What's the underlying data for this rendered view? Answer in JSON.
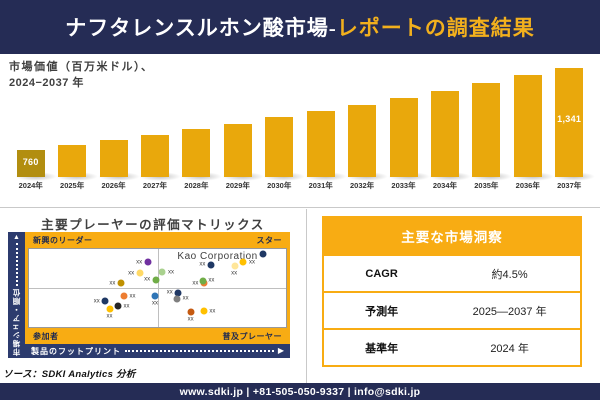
{
  "header": {
    "title_main": "ナフタレンスルホン酸市場-",
    "title_accent": "レポートの調査結果",
    "bg_color": "#252C55",
    "accent_color": "#F2B01D"
  },
  "chart_data": [
    {
      "type": "bar",
      "title": "市場価値（百万米ドル）、2024−2037 年",
      "title_line1": "市場価値（百万米ドル）、",
      "title_line2": "2024−2037 年",
      "categories": [
        "2024年",
        "2025年",
        "2026年",
        "2027年",
        "2028年",
        "2029年",
        "2030年",
        "2031年",
        "2032年",
        "2033年",
        "2034年",
        "2035年",
        "2036年",
        "2037年"
      ],
      "values": [
        760,
        794,
        830,
        867,
        906,
        947,
        990,
        1034,
        1081,
        1129,
        1180,
        1233,
        1289,
        1341
      ],
      "value_labels": [
        "760",
        "",
        "",
        "",
        "",
        "",
        "",
        "",
        "",
        "",
        "",
        "",
        "",
        "1,341"
      ],
      "ylim": [
        570,
        1360
      ],
      "grid": false,
      "bar_color": "#E9A80C",
      "base_year_bar_color": "#B28E10",
      "value_label_color": "#ffffff"
    },
    {
      "type": "scatter",
      "title": "主要プレーヤーの評価マトリックス",
      "xlabel": "製品のフットプリント",
      "ylabel": "市場シェア・順位",
      "annotation": "Kao Corporation",
      "quadrant_labels": {
        "top_left": "新興のリーダー",
        "top_right": "スター",
        "bottom_left": "参加者",
        "bottom_right": "普及プレーヤー"
      },
      "points": [
        {
          "x": 44.6,
          "y": 16.7,
          "color": "#7030A0",
          "label": "xx",
          "side": "left"
        },
        {
          "x": 41.5,
          "y": 30.8,
          "color": "#FFD966",
          "label": "xx",
          "side": "left"
        },
        {
          "x": 34.2,
          "y": 43.6,
          "color": "#BF9000",
          "label": "xx",
          "side": "left"
        },
        {
          "x": 47.7,
          "y": 39.7,
          "color": "#70AD47",
          "label": "xx",
          "side": "left"
        },
        {
          "x": 38.5,
          "y": 60.3,
          "color": "#ED7D31",
          "label": "xx",
          "side": "right"
        },
        {
          "x": 28.1,
          "y": 66.7,
          "color": "#1F3864",
          "label": "xx",
          "side": "left"
        },
        {
          "x": 31.5,
          "y": 76.9,
          "color": "#FFC000",
          "label": "xx",
          "side": "below"
        },
        {
          "x": 36.2,
          "y": 73.1,
          "color": "#262626",
          "label": "xx",
          "side": "right"
        },
        {
          "x": 49.2,
          "y": 60.3,
          "color": "#2E75B6",
          "label": "xx",
          "side": "below"
        },
        {
          "x": 91.2,
          "y": 6.4,
          "color": "#1F3864",
          "label": "",
          "side": "none"
        },
        {
          "x": 85.0,
          "y": 16.7,
          "color": "#FFC000",
          "label": "xx",
          "side": "right"
        },
        {
          "x": 69.2,
          "y": 20.5,
          "color": "#1F3864",
          "label": "xx",
          "side": "left"
        },
        {
          "x": 80.0,
          "y": 21.8,
          "color": "#FFE699",
          "label": "xx",
          "side": "below"
        },
        {
          "x": 53.5,
          "y": 29.5,
          "color": "#A9D18E",
          "label": "xx",
          "side": "right"
        },
        {
          "x": 66.5,
          "y": 43.6,
          "color": "#ED7D31",
          "label": "xx",
          "side": "left"
        },
        {
          "x": 69.2,
          "y": 41.0,
          "color": "#70AD47",
          "label": "xx",
          "side": "right"
        },
        {
          "x": 56.5,
          "y": 56.4,
          "color": "#203864",
          "label": "xx",
          "side": "left"
        },
        {
          "x": 59.2,
          "y": 64.1,
          "color": "#7F7F7F",
          "label": "xx",
          "side": "right"
        },
        {
          "x": 63.1,
          "y": 80.8,
          "color": "#C55A11",
          "label": "xx",
          "side": "below"
        },
        {
          "x": 69.6,
          "y": 79.5,
          "color": "#FFC000",
          "label": "xx",
          "side": "right"
        }
      ]
    }
  ],
  "source_note": "ソース：SDKI Analytics 分析",
  "insights": {
    "title": "主要な市場洞察",
    "header_bg": "#F8AC13",
    "rows": [
      {
        "label": "CAGR",
        "value": "約4.5%"
      },
      {
        "label": "予測年",
        "value": "2025—2037 年"
      },
      {
        "label": "基準年",
        "value": "2024 年"
      }
    ]
  },
  "footer": {
    "text": "www.sdki.jp | +81-505-050-9337 | info@sdki.jp"
  }
}
